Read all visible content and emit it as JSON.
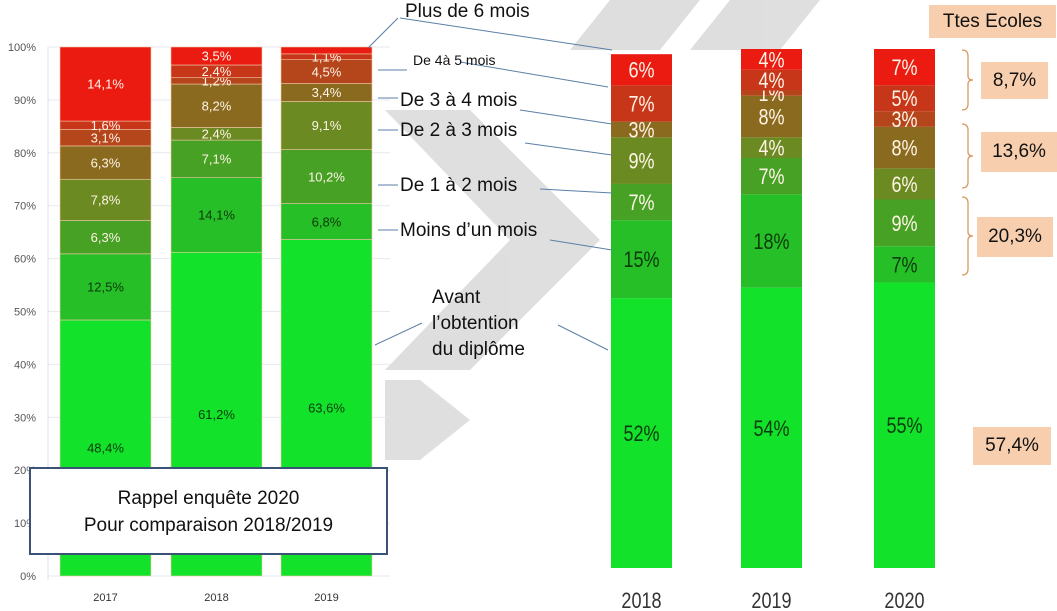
{
  "note_box": {
    "line1": "Rappel enquête 2020",
    "line2": "Pour comparaison 2018/2019"
  },
  "legend_labels": {
    "plus_6": "Plus de 6 mois",
    "de_4_5": "De 4à 5 mois",
    "de_3_4": "De 3 à 4 mois",
    "de_2_3": "De 2 à 3 mois",
    "de_1_2": "De 1 à 2 mois",
    "moins_1": "Moins d’un mois",
    "avant_1": "Avant",
    "avant_2": "l’obtention",
    "avant_3": "du diplôme"
  },
  "summary": {
    "header": "Ttes Ecoles",
    "groups": [
      {
        "label": "8,7%",
        "covers": "Plus de 6 mois → De 4 à 5 mois"
      },
      {
        "label": "13,6%",
        "covers": "De 3 à 4 mois → De 2 à 3 mois"
      },
      {
        "label": "20,3%",
        "covers": "De 1 à 2 mois → Moins d’un mois"
      },
      {
        "label": "57,4%",
        "covers": "Avant l’obtention du diplôme"
      }
    ]
  },
  "colors": {
    "avant": "#12e22a",
    "moins_1": "#27bf27",
    "de_1_2": "#47a125",
    "de_2_3": "#6b8a22",
    "de_3_4": "#8a6a1e",
    "de_4_5": "#b5451b",
    "de_5_6": "#c8361a",
    "plus_6": "#ec1b12"
  },
  "chart_data": [
    {
      "type": "bar",
      "stacked": true,
      "title": "",
      "xlabel": "",
      "ylabel": "",
      "ylim": [
        0,
        100
      ],
      "yticks": [
        "0%",
        "10%",
        "20%",
        "30%",
        "40%",
        "50%",
        "60%",
        "70%",
        "80%",
        "90%",
        "100%"
      ],
      "grid": true,
      "categories": [
        "2017",
        "2018",
        "2019"
      ],
      "series": [
        {
          "name": "Avant l’obtention du diplôme",
          "key": "avant",
          "values": [
            48.4,
            61.2,
            63.6
          ],
          "labels": [
            "48,4%",
            "61,2%",
            "63,6%"
          ]
        },
        {
          "name": "Moins d’un mois",
          "key": "moins_1",
          "values": [
            12.5,
            14.1,
            6.8
          ],
          "labels": [
            "12,5%",
            "14,1%",
            "6,8%"
          ]
        },
        {
          "name": "De 1 à 2 mois",
          "key": "de_1_2",
          "values": [
            6.3,
            7.1,
            10.2
          ],
          "labels": [
            "6,3%",
            "7,1%",
            "10,2%"
          ]
        },
        {
          "name": "De 2 à 3 mois",
          "key": "de_2_3",
          "values": [
            7.8,
            2.4,
            9.1
          ],
          "labels": [
            "7,8%",
            "2,4%",
            "9,1%"
          ]
        },
        {
          "name": "De 3 à 4 mois",
          "key": "de_3_4",
          "values": [
            6.3,
            8.2,
            3.4
          ],
          "labels": [
            "6,3%",
            "8,2%",
            "3,4%"
          ]
        },
        {
          "name": "De 4 à 5 mois",
          "key": "de_4_5",
          "values": [
            3.1,
            1.2,
            4.5
          ],
          "labels": [
            "3,1%",
            "1,2%",
            "4,5%"
          ]
        },
        {
          "name": "De 5 à 6 mois",
          "key": "de_5_6",
          "values": [
            1.6,
            2.4,
            1.1
          ],
          "labels": [
            "1,6%",
            "2,4%",
            "1,1%"
          ]
        },
        {
          "name": "Plus de 6 mois",
          "key": "plus_6",
          "values": [
            14.1,
            3.5,
            1.3
          ],
          "labels": [
            "14,1%",
            "3,5%",
            ""
          ]
        }
      ]
    },
    {
      "type": "bar",
      "stacked": true,
      "title": "",
      "xlabel": "",
      "ylabel": "",
      "ylim": [
        0,
        100
      ],
      "grid": false,
      "categories": [
        "2018",
        "2019",
        "2020"
      ],
      "series": [
        {
          "name": "Avant l’obtention du diplôme",
          "key": "avant",
          "values": [
            52,
            54,
            55
          ],
          "labels": [
            "52%",
            "54%",
            "55%"
          ]
        },
        {
          "name": "Moins d’un mois",
          "key": "moins_1",
          "values": [
            15,
            18,
            7
          ],
          "labels": [
            "15%",
            "18%",
            "7%"
          ]
        },
        {
          "name": "De 1 à 2 mois",
          "key": "de_1_2",
          "values": [
            7,
            7,
            9
          ],
          "labels": [
            "7%",
            "7%",
            "9%"
          ]
        },
        {
          "name": "De 2 à 3 mois",
          "key": "de_2_3",
          "values": [
            9,
            4,
            6
          ],
          "labels": [
            "9%",
            "4%",
            "6%"
          ]
        },
        {
          "name": "De 3 à 4 mois",
          "key": "de_3_4",
          "values": [
            3,
            8,
            8
          ],
          "labels": [
            "3%",
            "8%",
            "8%"
          ]
        },
        {
          "name": "De 4 à 5 mois",
          "key": "de_4_5",
          "values": [
            0,
            1,
            3
          ],
          "labels": [
            "",
            "1%",
            "3%"
          ]
        },
        {
          "name": "De 5 à 6 mois",
          "key": "de_5_6",
          "values": [
            7,
            4,
            5
          ],
          "labels": [
            "7%",
            "4%",
            "5%"
          ]
        },
        {
          "name": "Plus de 6 mois",
          "key": "plus_6",
          "values": [
            6,
            4,
            7
          ],
          "labels": [
            "6%",
            "4%",
            "7%"
          ]
        }
      ]
    }
  ]
}
